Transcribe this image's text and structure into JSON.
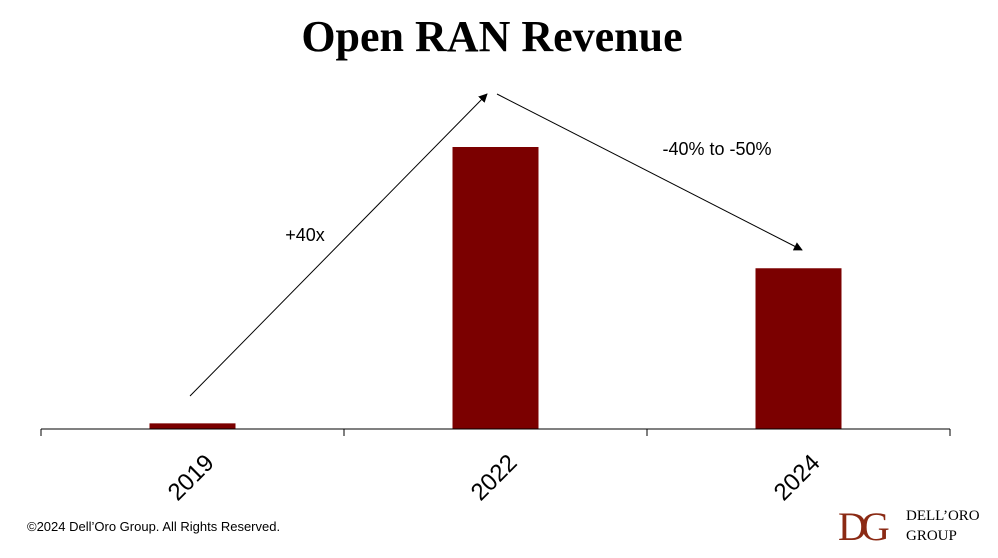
{
  "chart_data": {
    "type": "bar",
    "title": "Open RAN Revenue",
    "categories": [
      "2019",
      "2022",
      "2024"
    ],
    "values": [
      2,
      100,
      57
    ],
    "ylim": [
      0,
      100
    ],
    "bar_color": "#7B0000",
    "grid": false,
    "legend": "none",
    "annotations": [
      {
        "text": "+40x",
        "from": "2019",
        "to": "2022"
      },
      {
        "text": "-40% to -50%",
        "from": "2022",
        "to": "2024"
      }
    ]
  },
  "footer": {
    "copyright": "©2024 Dell’Oro Group. All Rights Reserved.",
    "logo_mark": "DG",
    "logo_line1": "DELL’ORO",
    "logo_line2": "GROUP",
    "logo_color": "#8B2A14"
  }
}
